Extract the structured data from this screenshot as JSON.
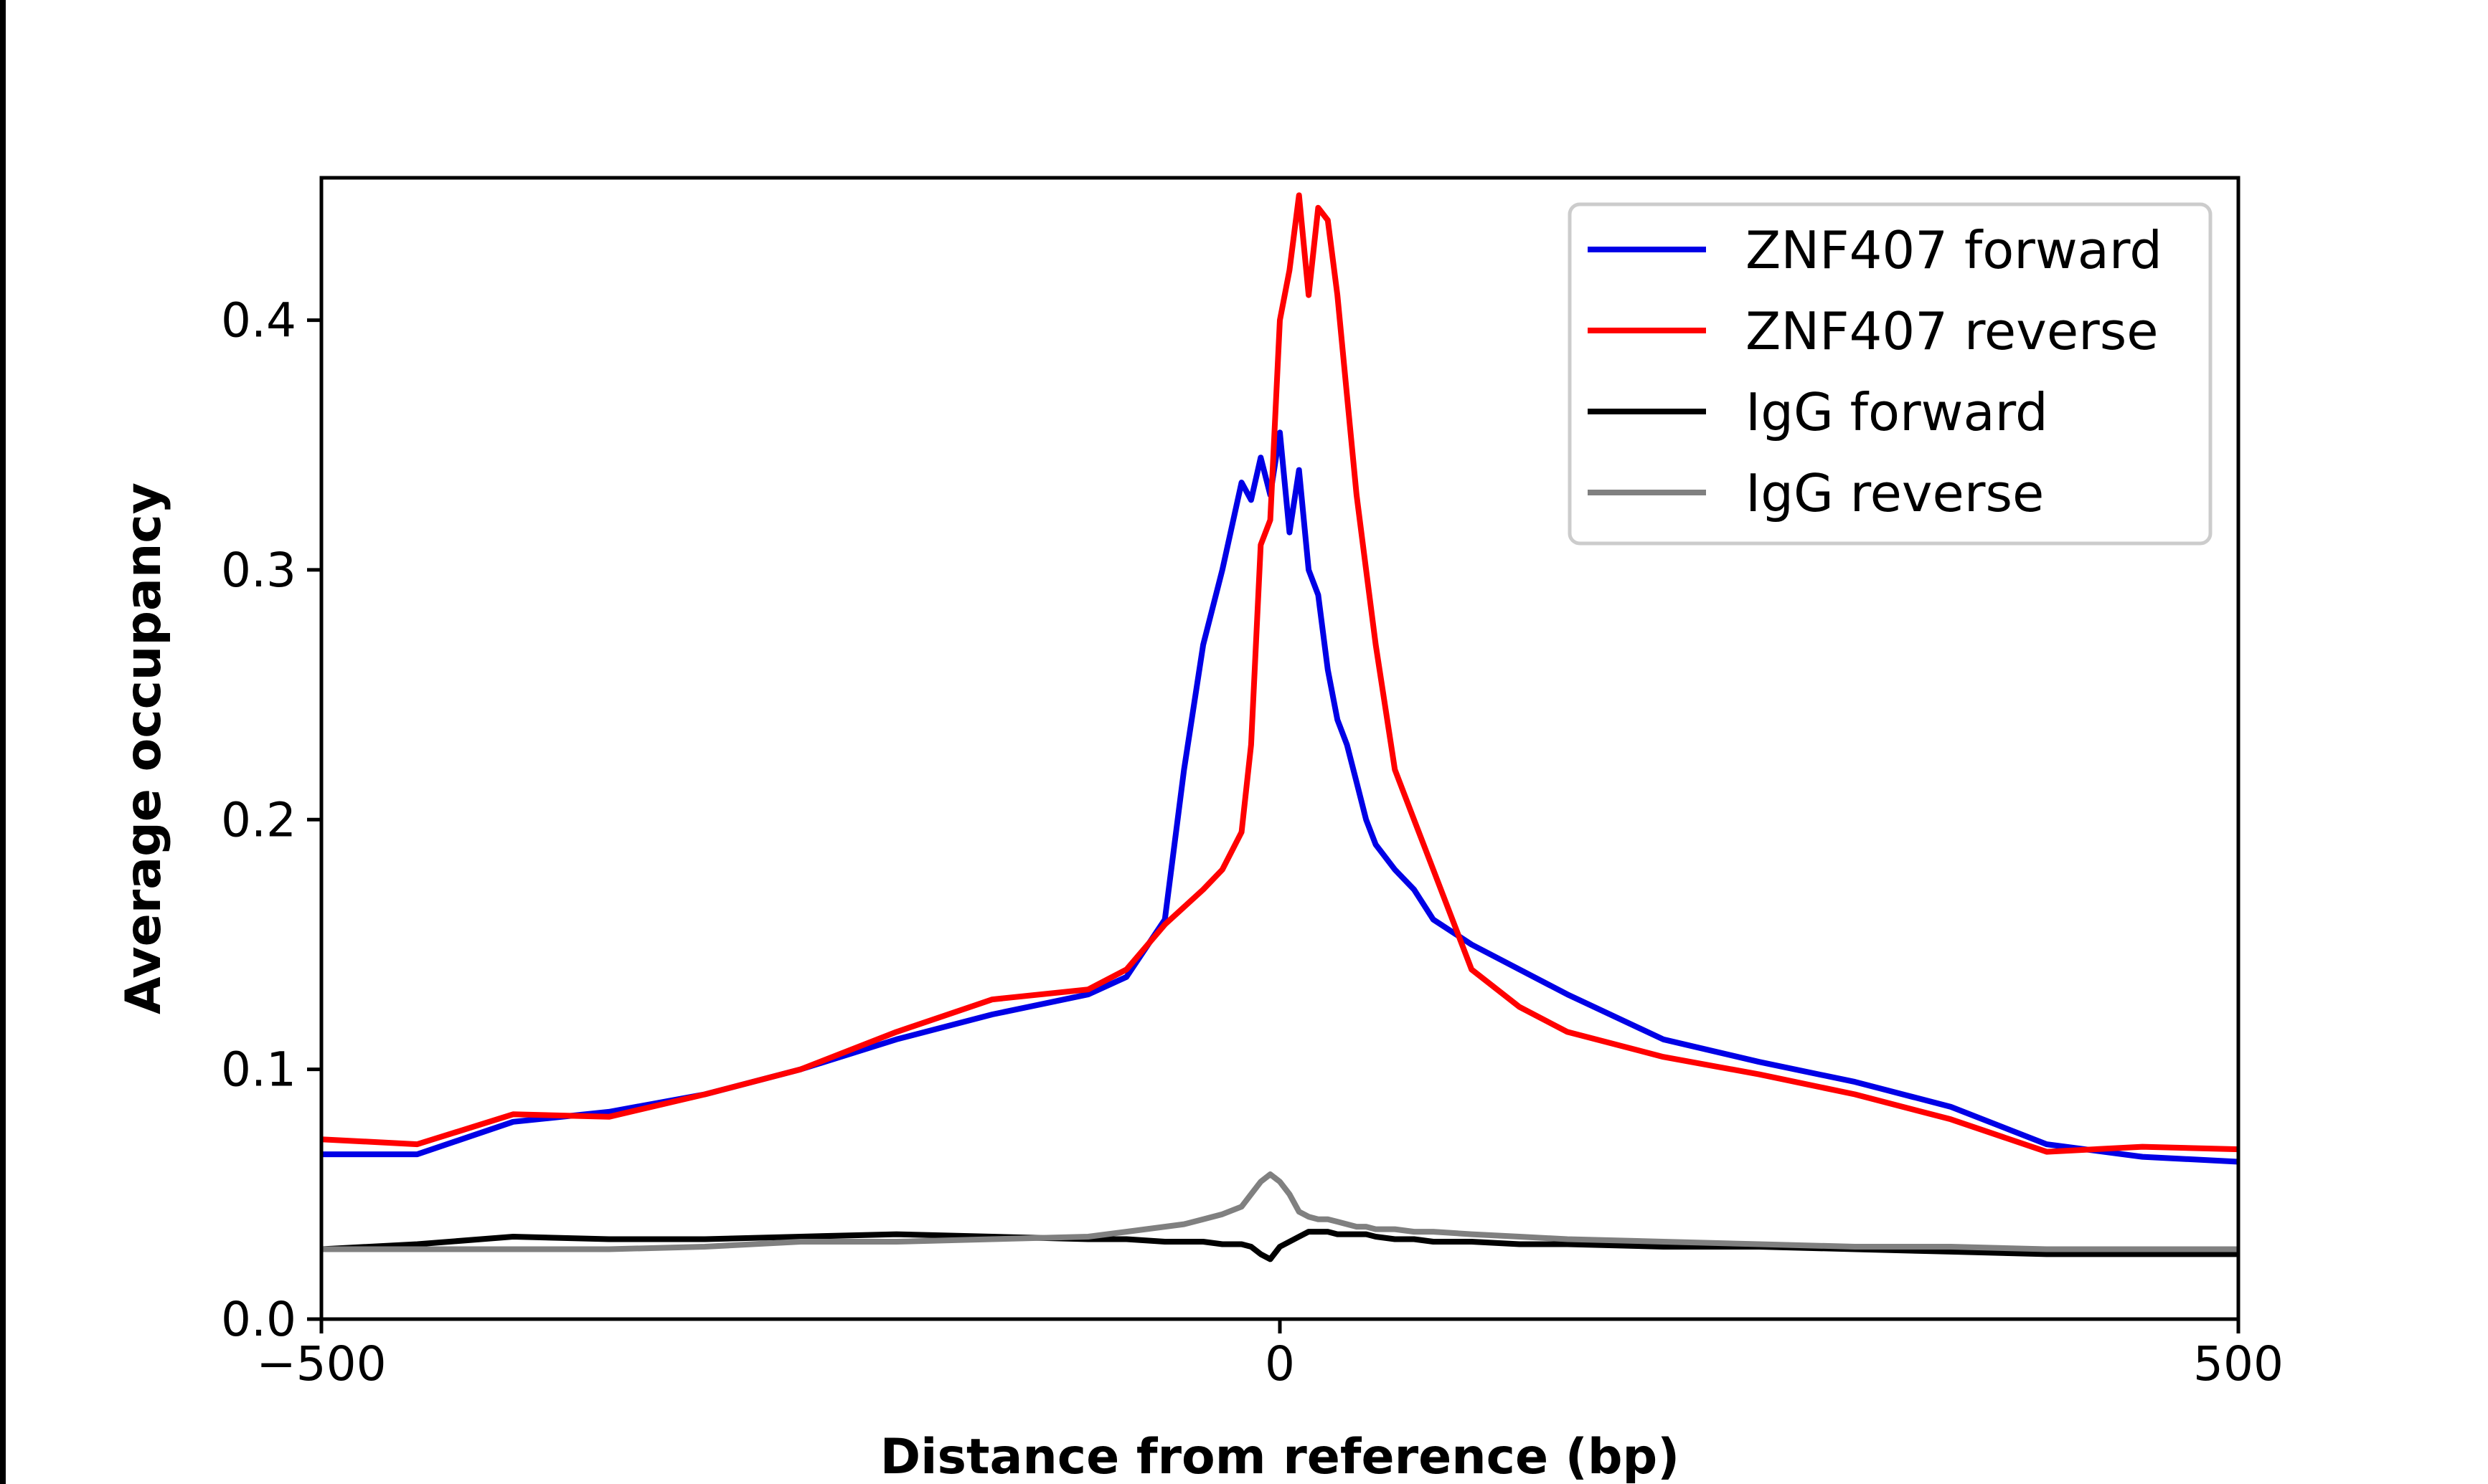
{
  "chart_data": {
    "type": "line",
    "title": "",
    "xlabel": "Distance from reference (bp)",
    "ylabel": "Average occupancy",
    "xlim": [
      -500,
      500
    ],
    "ylim": [
      0,
      0.457
    ],
    "xticks": [
      -500,
      0,
      500
    ],
    "xtick_labels": [
      "−500",
      "0",
      "500"
    ],
    "yticks": [
      0.0,
      0.1,
      0.2,
      0.3,
      0.4
    ],
    "ytick_labels": [
      "0.0",
      "0.1",
      "0.2",
      "0.3",
      "0.4"
    ],
    "grid": false,
    "legend": "top-right",
    "x": [
      -500,
      -450,
      -400,
      -350,
      -300,
      -250,
      -200,
      -150,
      -100,
      -80,
      -60,
      -50,
      -40,
      -30,
      -20,
      -15,
      -10,
      -5,
      0,
      5,
      10,
      15,
      20,
      25,
      30,
      35,
      40,
      45,
      50,
      60,
      70,
      80,
      100,
      125,
      150,
      200,
      250,
      300,
      350,
      400,
      450,
      500
    ],
    "series": [
      {
        "name": "ZNF407 forward",
        "color": "#0000e6",
        "values": [
          0.066,
          0.066,
          0.079,
          0.083,
          0.09,
          0.1,
          0.112,
          0.122,
          0.13,
          0.137,
          0.16,
          0.22,
          0.27,
          0.3,
          0.335,
          0.328,
          0.345,
          0.33,
          0.355,
          0.315,
          0.34,
          0.3,
          0.29,
          0.26,
          0.24,
          0.23,
          0.215,
          0.2,
          0.19,
          0.18,
          0.172,
          0.16,
          0.15,
          0.14,
          0.13,
          0.112,
          0.103,
          0.095,
          0.085,
          0.07,
          0.065,
          0.063
        ]
      },
      {
        "name": "ZNF407 reverse",
        "color": "#ff0000",
        "values": [
          0.072,
          0.07,
          0.082,
          0.081,
          0.09,
          0.1,
          0.115,
          0.128,
          0.132,
          0.14,
          0.158,
          0.165,
          0.172,
          0.18,
          0.195,
          0.23,
          0.31,
          0.32,
          0.4,
          0.42,
          0.45,
          0.41,
          0.445,
          0.44,
          0.41,
          0.37,
          0.33,
          0.3,
          0.27,
          0.22,
          0.2,
          0.18,
          0.14,
          0.125,
          0.115,
          0.105,
          0.098,
          0.09,
          0.08,
          0.067,
          0.069,
          0.068
        ]
      },
      {
        "name": "IgG forward",
        "color": "#000000",
        "values": [
          0.028,
          0.03,
          0.033,
          0.032,
          0.032,
          0.033,
          0.034,
          0.033,
          0.032,
          0.032,
          0.031,
          0.031,
          0.031,
          0.03,
          0.03,
          0.029,
          0.026,
          0.024,
          0.029,
          0.031,
          0.033,
          0.035,
          0.035,
          0.035,
          0.034,
          0.034,
          0.034,
          0.034,
          0.033,
          0.032,
          0.032,
          0.031,
          0.031,
          0.03,
          0.03,
          0.029,
          0.029,
          0.028,
          0.027,
          0.026,
          0.026,
          0.026
        ]
      },
      {
        "name": "IgG reverse",
        "color": "#808080",
        "values": [
          0.028,
          0.028,
          0.028,
          0.028,
          0.029,
          0.031,
          0.031,
          0.032,
          0.033,
          0.035,
          0.037,
          0.038,
          0.04,
          0.042,
          0.045,
          0.05,
          0.055,
          0.058,
          0.055,
          0.05,
          0.043,
          0.041,
          0.04,
          0.04,
          0.039,
          0.038,
          0.037,
          0.037,
          0.036,
          0.036,
          0.035,
          0.035,
          0.034,
          0.033,
          0.032,
          0.031,
          0.03,
          0.029,
          0.029,
          0.028,
          0.028,
          0.028
        ]
      }
    ]
  }
}
